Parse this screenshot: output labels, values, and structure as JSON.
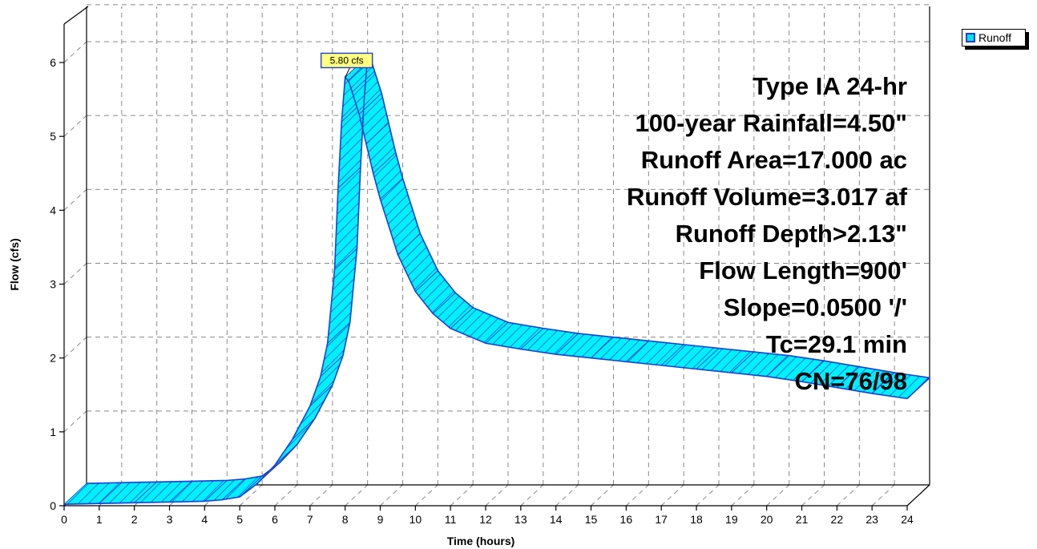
{
  "chart_data": {
    "type": "area",
    "xlabel": "Time (hours)",
    "ylabel": "Flow (cfs)",
    "xlim": [
      0,
      24
    ],
    "ylim": [
      0,
      6
    ],
    "x_ticks": [
      "0",
      "1",
      "2",
      "3",
      "4",
      "5",
      "6",
      "7",
      "8",
      "9",
      "10",
      "11",
      "12",
      "13",
      "14",
      "15",
      "16",
      "17",
      "18",
      "19",
      "20",
      "21",
      "22",
      "23",
      "24"
    ],
    "y_ticks": [
      "0",
      "1",
      "2",
      "3",
      "4",
      "5",
      "6"
    ],
    "grid": true,
    "legend_position": "top-right",
    "series": [
      {
        "name": "Runoff",
        "color": "#00f0ff",
        "edge_color": "#1f3fd0",
        "x": [
          0,
          1,
          2,
          3,
          4,
          4.5,
          5,
          5.5,
          6,
          6.5,
          7,
          7.3,
          7.5,
          7.7,
          7.8,
          7.9,
          8.0,
          8.1,
          8.2,
          8.4,
          8.6,
          8.8,
          9,
          9.5,
          10,
          10.5,
          11,
          12,
          13,
          14,
          15,
          16,
          17,
          18,
          19,
          20,
          21,
          22,
          23,
          24
        ],
        "y": [
          0.02,
          0.03,
          0.04,
          0.05,
          0.06,
          0.08,
          0.12,
          0.3,
          0.55,
          0.9,
          1.35,
          1.75,
          2.2,
          3.2,
          4.3,
          5.2,
          5.8,
          5.75,
          5.6,
          5.3,
          4.9,
          4.5,
          4.15,
          3.4,
          2.9,
          2.6,
          2.4,
          2.2,
          2.12,
          2.05,
          2.0,
          1.95,
          1.9,
          1.85,
          1.8,
          1.75,
          1.68,
          1.6,
          1.52,
          1.45
        ]
      }
    ],
    "peak_label": "5.80 cfs",
    "annotations": [
      "Type IA 24-hr",
      "100-year Rainfall=4.50\"",
      "Runoff Area=17.000 ac",
      "Runoff Volume=3.017 af",
      "Runoff Depth>2.13\"",
      "Flow Length=900'",
      "Slope=0.0500 '/'",
      "Tc=29.1 min",
      "CN=76/98"
    ]
  }
}
